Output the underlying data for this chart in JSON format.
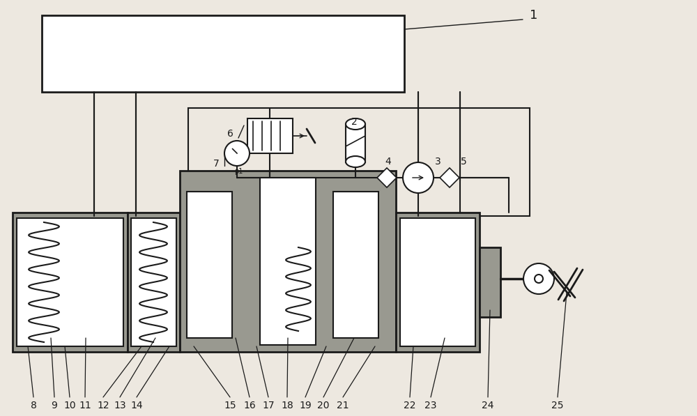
{
  "bg_color": "#ede8e0",
  "line_color": "#1a1a1a",
  "fill_dark": "#999990",
  "figure_width": 10.0,
  "figure_height": 5.97,
  "dpi": 100
}
